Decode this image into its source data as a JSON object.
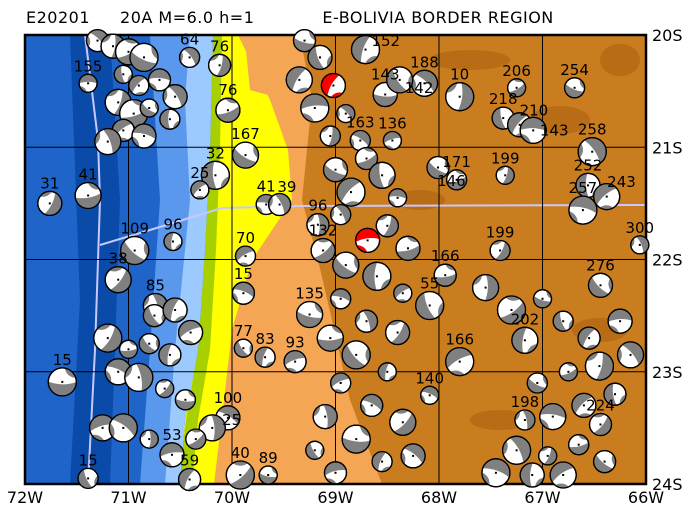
{
  "title": {
    "part1": "E20201",
    "part2": "20A  M=6.0  h=1",
    "part3": "E-BOLIVIA BORDER REGION"
  },
  "axes": {
    "lon_range": [
      -72,
      -66
    ],
    "lat_range": [
      -24,
      -20
    ],
    "lon_ticks": [
      "72W",
      "71W",
      "70W",
      "69W",
      "68W",
      "67W",
      "66W"
    ],
    "lat_ticks": [
      "20S",
      "21S",
      "22S",
      "23S",
      "24S"
    ],
    "grid": true
  },
  "colors": {
    "ocean_deep": "#0a4aa8",
    "ocean": "#1f64c8",
    "shelf": "#5a98ee",
    "shelf_light": "#9ccaff",
    "coast_green": "#a8d000",
    "lowland_yellow": "#ffff00",
    "foothill_orange": "#f4a655",
    "altiplano_brown": "#c97d1e",
    "compressional": "#808080",
    "dilatational": "#ffffff",
    "main_event": "#ff0000",
    "trench_line": "#c8c8ff"
  },
  "events": [
    {
      "lon": -71.39,
      "lat": -20.43,
      "depth": "155"
    },
    {
      "lon": -70.41,
      "lat": -20.2,
      "depth": "64"
    },
    {
      "lon": -70.12,
      "lat": -20.27,
      "depth": "76"
    },
    {
      "lon": -70.04,
      "lat": -20.67,
      "depth": "76"
    },
    {
      "lon": -69.87,
      "lat": -21.07,
      "depth": "167"
    },
    {
      "lon": -70.16,
      "lat": -21.25,
      "depth": "32"
    },
    {
      "lon": -70.31,
      "lat": -21.38,
      "depth": "25"
    },
    {
      "lon": -69.67,
      "lat": -21.51,
      "depth": "41"
    },
    {
      "lon": -69.54,
      "lat": -21.51,
      "depth": "39"
    },
    {
      "lon": -71.76,
      "lat": -21.5,
      "depth": "31"
    },
    {
      "lon": -71.39,
      "lat": -21.43,
      "depth": "41"
    },
    {
      "lon": -70.94,
      "lat": -21.92,
      "depth": "109"
    },
    {
      "lon": -70.57,
      "lat": -21.84,
      "depth": "96"
    },
    {
      "lon": -69.87,
      "lat": -21.97,
      "depth": "70"
    },
    {
      "lon": -69.89,
      "lat": -22.3,
      "depth": "15"
    },
    {
      "lon": -70.74,
      "lat": -22.41,
      "depth": "85"
    },
    {
      "lon": -71.1,
      "lat": -22.18,
      "depth": "38"
    },
    {
      "lon": -71.64,
      "lat": -23.09,
      "depth": "15"
    },
    {
      "lon": -69.89,
      "lat": -22.79,
      "depth": "77"
    },
    {
      "lon": -69.68,
      "lat": -22.87,
      "depth": "83"
    },
    {
      "lon": -69.39,
      "lat": -22.91,
      "depth": "93"
    },
    {
      "lon": -70.04,
      "lat": -23.41,
      "depth": "100"
    },
    {
      "lon": -70.19,
      "lat": -23.5,
      "depth": "25"
    },
    {
      "lon": -69.92,
      "lat": -23.92,
      "depth": "40"
    },
    {
      "lon": -69.65,
      "lat": -23.92,
      "depth": "89"
    },
    {
      "lon": -71.39,
      "lat": -23.95,
      "depth": "15"
    },
    {
      "lon": -70.41,
      "lat": -23.96,
      "depth": "59"
    },
    {
      "lon": -70.58,
      "lat": -23.74,
      "depth": "53"
    },
    {
      "lon": -68.14,
      "lat": -20.43,
      "depth": "188"
    },
    {
      "lon": -67.8,
      "lat": -20.55,
      "depth": "10"
    },
    {
      "lon": -67.25,
      "lat": -20.47,
      "depth": "206"
    },
    {
      "lon": -66.69,
      "lat": -20.47,
      "depth": "254"
    },
    {
      "lon": -67.38,
      "lat": -20.74,
      "depth": "218"
    },
    {
      "lon": -67.22,
      "lat": -20.8,
      "depth": "210"
    },
    {
      "lon": -67.09,
      "lat": -20.85,
      "depth": "143"
    },
    {
      "lon": -66.52,
      "lat": -21.04,
      "depth": "258"
    },
    {
      "lon": -67.36,
      "lat": -21.25,
      "depth": "199"
    },
    {
      "lon": -67.83,
      "lat": -21.29,
      "depth": "171"
    },
    {
      "lon": -68.01,
      "lat": -21.18,
      "depth": "146"
    },
    {
      "lon": -66.56,
      "lat": -21.34,
      "depth": "252"
    },
    {
      "lon": -66.38,
      "lat": -21.44,
      "depth": "243"
    },
    {
      "lon": -66.61,
      "lat": -21.56,
      "depth": "257"
    },
    {
      "lon": -66.06,
      "lat": -21.87,
      "depth": "300"
    },
    {
      "lon": -67.41,
      "lat": -21.92,
      "depth": "199"
    },
    {
      "lon": -67.94,
      "lat": -22.14,
      "depth": "166"
    },
    {
      "lon": -66.44,
      "lat": -22.23,
      "depth": "276"
    },
    {
      "lon": -67.17,
      "lat": -22.72,
      "depth": "202"
    },
    {
      "lon": -67.8,
      "lat": -22.91,
      "depth": "166"
    },
    {
      "lon": -68.09,
      "lat": -23.21,
      "depth": "140"
    },
    {
      "lon": -67.17,
      "lat": -23.43,
      "depth": "198"
    },
    {
      "lon": -66.44,
      "lat": -23.47,
      "depth": "224"
    },
    {
      "lon": -68.52,
      "lat": -20.53,
      "depth": "143"
    },
    {
      "lon": -68.38,
      "lat": -20.4,
      "depth": "142"
    },
    {
      "lon": -68.71,
      "lat": -20.13,
      "depth": "152"
    },
    {
      "lon": -68.45,
      "lat": -20.94,
      "depth": "136"
    },
    {
      "lon": -68.76,
      "lat": -20.94,
      "depth": "163"
    },
    {
      "lon": -69.17,
      "lat": -21.69,
      "depth": "96"
    },
    {
      "lon": -69.12,
      "lat": -21.92,
      "depth": "132"
    },
    {
      "lon": -69.25,
      "lat": -22.49,
      "depth": "135"
    },
    {
      "lon": -68.09,
      "lat": -22.41,
      "depth": "55"
    },
    {
      "lon": -69.02,
      "lat": -20.45,
      "depth": "",
      "main": true
    },
    {
      "lon": -68.69,
      "lat": -21.83,
      "depth": "",
      "main": true
    },
    {
      "lon": -71.3,
      "lat": -20.05
    },
    {
      "lon": -71.15,
      "lat": -20.1
    },
    {
      "lon": -71.0,
      "lat": -20.15
    },
    {
      "lon": -70.85,
      "lat": -20.2
    },
    {
      "lon": -71.05,
      "lat": -20.35
    },
    {
      "lon": -70.9,
      "lat": -20.45
    },
    {
      "lon": -70.7,
      "lat": -20.4
    },
    {
      "lon": -70.55,
      "lat": -20.55
    },
    {
      "lon": -71.1,
      "lat": -20.6
    },
    {
      "lon": -70.95,
      "lat": -20.7
    },
    {
      "lon": -70.8,
      "lat": -20.65
    },
    {
      "lon": -70.6,
      "lat": -20.75
    },
    {
      "lon": -71.05,
      "lat": -20.85
    },
    {
      "lon": -70.85,
      "lat": -20.9
    },
    {
      "lon": -71.2,
      "lat": -20.95
    },
    {
      "lon": -71.2,
      "lat": -22.7
    },
    {
      "lon": -71.0,
      "lat": -22.8
    },
    {
      "lon": -70.8,
      "lat": -22.75
    },
    {
      "lon": -70.6,
      "lat": -22.85
    },
    {
      "lon": -70.4,
      "lat": -22.65
    },
    {
      "lon": -71.1,
      "lat": -23.0
    },
    {
      "lon": -70.9,
      "lat": -23.05
    },
    {
      "lon": -70.65,
      "lat": -23.15
    },
    {
      "lon": -70.45,
      "lat": -23.25
    },
    {
      "lon": -70.75,
      "lat": -22.5
    },
    {
      "lon": -70.55,
      "lat": -22.45
    },
    {
      "lon": -71.25,
      "lat": -23.5
    },
    {
      "lon": -71.05,
      "lat": -23.5
    },
    {
      "lon": -70.8,
      "lat": -23.6
    },
    {
      "lon": -70.35,
      "lat": -23.6
    },
    {
      "lon": -69.3,
      "lat": -20.05
    },
    {
      "lon": -69.15,
      "lat": -20.2
    },
    {
      "lon": -69.35,
      "lat": -20.4
    },
    {
      "lon": -69.2,
      "lat": -20.65
    },
    {
      "lon": -68.9,
      "lat": -20.7
    },
    {
      "lon": -69.05,
      "lat": -20.9
    },
    {
      "lon": -68.7,
      "lat": -21.1
    },
    {
      "lon": -69.0,
      "lat": -21.2
    },
    {
      "lon": -68.55,
      "lat": -21.25
    },
    {
      "lon": -68.85,
      "lat": -21.4
    },
    {
      "lon": -68.4,
      "lat": -21.45
    },
    {
      "lon": -68.95,
      "lat": -21.6
    },
    {
      "lon": -68.5,
      "lat": -21.7
    },
    {
      "lon": -68.3,
      "lat": -21.9
    },
    {
      "lon": -68.9,
      "lat": -22.05
    },
    {
      "lon": -68.6,
      "lat": -22.15
    },
    {
      "lon": -68.35,
      "lat": -22.3
    },
    {
      "lon": -68.95,
      "lat": -22.35
    },
    {
      "lon": -68.7,
      "lat": -22.55
    },
    {
      "lon": -68.4,
      "lat": -22.65
    },
    {
      "lon": -69.05,
      "lat": -22.7
    },
    {
      "lon": -68.8,
      "lat": -22.85
    },
    {
      "lon": -68.5,
      "lat": -23.0
    },
    {
      "lon": -68.95,
      "lat": -23.1
    },
    {
      "lon": -68.65,
      "lat": -23.3
    },
    {
      "lon": -69.1,
      "lat": -23.4
    },
    {
      "lon": -68.35,
      "lat": -23.45
    },
    {
      "lon": -68.8,
      "lat": -23.6
    },
    {
      "lon": -69.2,
      "lat": -23.7
    },
    {
      "lon": -68.55,
      "lat": -23.8
    },
    {
      "lon": -69.0,
      "lat": -23.9
    },
    {
      "lon": -68.25,
      "lat": -23.75
    },
    {
      "lon": -67.55,
      "lat": -22.25
    },
    {
      "lon": -67.3,
      "lat": -22.45
    },
    {
      "lon": -67.0,
      "lat": -22.35
    },
    {
      "lon": -66.8,
      "lat": -22.55
    },
    {
      "lon": -66.55,
      "lat": -22.7
    },
    {
      "lon": -66.25,
      "lat": -22.55
    },
    {
      "lon": -66.15,
      "lat": -22.85
    },
    {
      "lon": -66.45,
      "lat": -22.95
    },
    {
      "lon": -66.75,
      "lat": -23.0
    },
    {
      "lon": -67.05,
      "lat": -23.1
    },
    {
      "lon": -66.3,
      "lat": -23.2
    },
    {
      "lon": -66.6,
      "lat": -23.3
    },
    {
      "lon": -66.9,
      "lat": -23.4
    },
    {
      "lon": -67.25,
      "lat": -23.7
    },
    {
      "lon": -66.95,
      "lat": -23.75
    },
    {
      "lon": -66.65,
      "lat": -23.65
    },
    {
      "lon": -66.4,
      "lat": -23.8
    },
    {
      "lon": -67.1,
      "lat": -23.92
    },
    {
      "lon": -66.8,
      "lat": -23.92
    },
    {
      "lon": -67.45,
      "lat": -23.9
    }
  ]
}
